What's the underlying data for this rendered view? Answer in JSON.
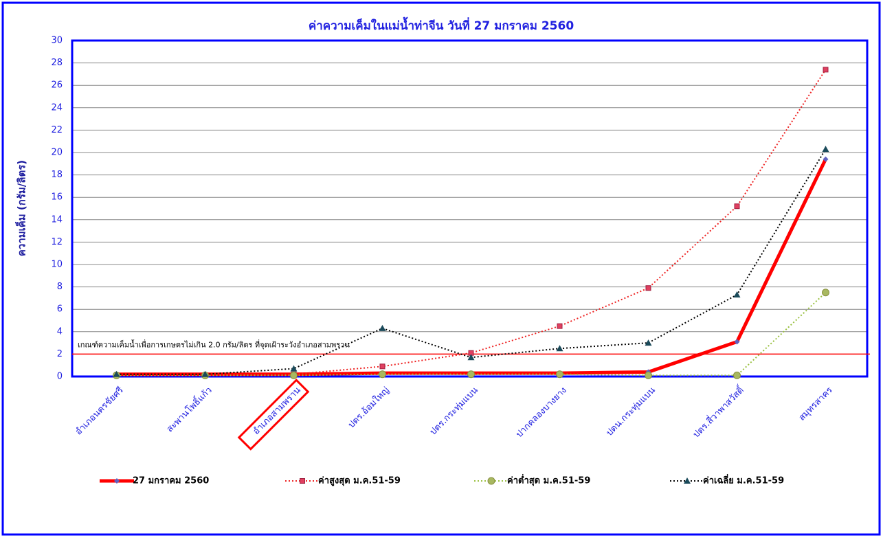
{
  "chart_data": {
    "type": "line",
    "title": "ค่าความเค็มในแม่น้ำท่าจีน วันที่ 27 มกราคม 2560",
    "y_label": "ความเค็ม (กรัม/ลิตร)",
    "categories": [
      "อำเภอนครชัยศรี",
      "สะพานโพธิ์แก้ว",
      "อำเภอสามพราน",
      "ปตร.อ้อมใหญ่",
      "ปตร.กระทุ่มแบน",
      "ปากคลองบางยาง",
      "ปตน.กระทุ่มแบน",
      "ปตร.สี่วาพาสวัสดิ์",
      "สมุทรสาคร"
    ],
    "series": [
      {
        "name": "27 มกราคม 2560",
        "color": "#ff0000",
        "style": "solid",
        "marker": "diamond",
        "values": [
          0.2,
          0.2,
          0.2,
          0.3,
          0.3,
          0.3,
          0.4,
          3.1,
          19.4
        ]
      },
      {
        "name": "ค่าสูงสุด ม.ค.51-59",
        "color": "#ee2222",
        "style": "dotted",
        "marker": "square",
        "values": [
          0.1,
          0.1,
          0.2,
          0.9,
          2.1,
          4.5,
          7.9,
          15.2,
          27.4
        ]
      },
      {
        "name": "ค่าต่ำสุด ม.ค.51-59",
        "color": "#99c040",
        "style": "dotted",
        "marker": "circle",
        "values": [
          0.1,
          0.1,
          0.1,
          0.2,
          0.2,
          0.2,
          0.1,
          0.1,
          7.5
        ]
      },
      {
        "name": "ค่าเฉลี่ย ม.ค.51-59",
        "color": "#000000",
        "style": "dotted",
        "marker": "triangle",
        "values": [
          0.2,
          0.2,
          0.7,
          4.3,
          1.7,
          2.5,
          3.0,
          7.3,
          20.3
        ]
      }
    ],
    "threshold": 2,
    "threshold_label": "เกณฑ์ความเค็มน้ำเพื่อการเกษตรไม่เกิน 2.0 กรัม/ลิตร  ที่จุดเฝ้าระวังอำเภอสามพราน",
    "ylim": [
      0,
      30
    ],
    "yticks": [
      0,
      2,
      4,
      6,
      8,
      10,
      12,
      14,
      16,
      18,
      20,
      22,
      24,
      26,
      28,
      30
    ],
    "grid": true
  }
}
